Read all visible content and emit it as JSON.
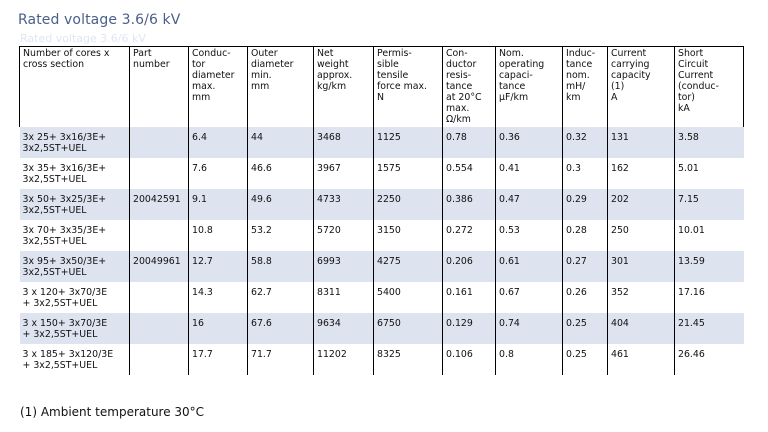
{
  "page": {
    "title": "Rated voltage 3.6/6 kV",
    "title_ghost": "Rated voltage 3.6/6 kV",
    "footnote": "(1) Ambient temperature 30°C"
  },
  "table": {
    "headers": [
      "Number of cores x\ncross section",
      "Part\nnumber",
      "Conduc-\ntor\ndiameter\nmax.\nmm",
      "Outer\ndiameter\nmin.\nmm",
      "Net\nweight\napprox.\nkg/km",
      "Permis-\nsible\ntensile\nforce max.\nN",
      "Con-\nductor\nresis-\ntance\nat 20°C\nmax.\nΩ/km",
      "Nom.\noperating\ncapaci-\ntance\nµF/km",
      "Induc-\ntance\nnom.\nmH/\nkm",
      "Current\ncarrying\ncapacity\n(1)\nA",
      "Short\nCircuit\nCurrent\n(conduc-\ntor)\nkA"
    ],
    "rows": [
      [
        "3x 25+ 3x16/3E+\n3x2,5ST+UEL",
        "",
        "6.4",
        "44",
        "3468",
        "1125",
        "0.78",
        "0.36",
        "0.32",
        "131",
        "3.58"
      ],
      [
        "3x 35+ 3x16/3E+\n3x2,5ST+UEL",
        "",
        "7.6",
        "46.6",
        "3967",
        "1575",
        "0.554",
        "0.41",
        "0.3",
        "162",
        "5.01"
      ],
      [
        "3x 50+ 3x25/3E+\n3x2,5ST+UEL",
        "20042591",
        "9.1",
        "49.6",
        "4733",
        "2250",
        "0.386",
        "0.47",
        "0.29",
        "202",
        "7.15"
      ],
      [
        "3x 70+ 3x35/3E+\n3x2,5ST+UEL",
        "",
        "10.8",
        "53.2",
        "5720",
        "3150",
        "0.272",
        "0.53",
        "0.28",
        "250",
        "10.01"
      ],
      [
        "3x 95+ 3x50/3E+\n3x2,5ST+UEL",
        "20049961",
        "12.7",
        "58.8",
        "6993",
        "4275",
        "0.206",
        "0.61",
        "0.27",
        "301",
        "13.59"
      ],
      [
        "3 x 120+ 3x70/3E\n+ 3x2,5ST+UEL",
        "",
        "14.3",
        "62.7",
        "8311",
        "5400",
        "0.161",
        "0.67",
        "0.26",
        "352",
        "17.16"
      ],
      [
        "3 x 150+ 3x70/3E\n+ 3x2,5ST+UEL",
        "",
        "16",
        "67.6",
        "9634",
        "6750",
        "0.129",
        "0.74",
        "0.25",
        "404",
        "21.45"
      ],
      [
        "3 x 185+ 3x120/3E\n+ 3x2,5ST+UEL",
        "",
        "17.7",
        "71.7",
        "11202",
        "8325",
        "0.106",
        "0.8",
        "0.25",
        "461",
        "26.46"
      ]
    ]
  }
}
